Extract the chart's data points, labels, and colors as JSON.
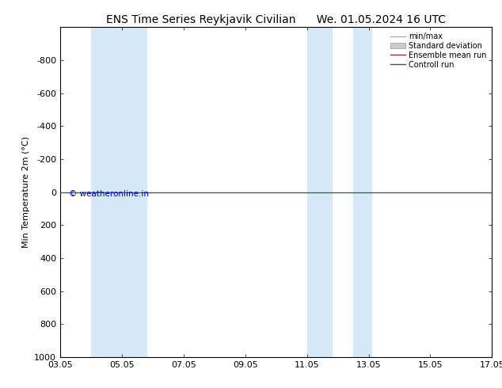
{
  "title_left": "ENS Time Series Reykjavik Civilian",
  "title_right": "We. 01.05.2024 16 UTC",
  "ylabel": "Min Temperature 2m (°C)",
  "ylim_bottom": -1000,
  "ylim_top": 1000,
  "yticks": [
    -800,
    -600,
    -400,
    -200,
    0,
    200,
    400,
    600,
    800,
    1000
  ],
  "xtick_labels": [
    "03.05",
    "05.05",
    "07.05",
    "09.05",
    "11.05",
    "13.05",
    "15.05",
    "17.05"
  ],
  "xtick_positions": [
    3,
    5,
    7,
    9,
    11,
    13,
    15,
    17
  ],
  "xlim": [
    3,
    17
  ],
  "shade_regions": [
    {
      "xmin": 4.0,
      "xmax": 5.0
    },
    {
      "xmin": 5.0,
      "xmax": 5.8
    },
    {
      "xmin": 11.0,
      "xmax": 11.8
    },
    {
      "xmin": 12.5,
      "xmax": 13.1
    }
  ],
  "shade_color": "#d6e9f8",
  "control_run_y": 0,
  "control_run_color": "#008000",
  "ensemble_mean_color": "#ff0000",
  "minmax_color": "#b0b0b0",
  "std_color": "#cccccc",
  "watermark": "© weatheronline.in",
  "watermark_color": "#0000cc",
  "background_color": "#ffffff",
  "plot_bg_color": "#ffffff",
  "legend_labels": [
    "min/max",
    "Standard deviation",
    "Ensemble mean run",
    "Controll run"
  ],
  "legend_line_color": "#b0b0b0",
  "legend_std_color": "#cccccc",
  "legend_mean_color": "#ff0000",
  "legend_ctrl_color": "#008000",
  "title_fontsize": 10,
  "axis_fontsize": 8,
  "tick_fontsize": 8
}
